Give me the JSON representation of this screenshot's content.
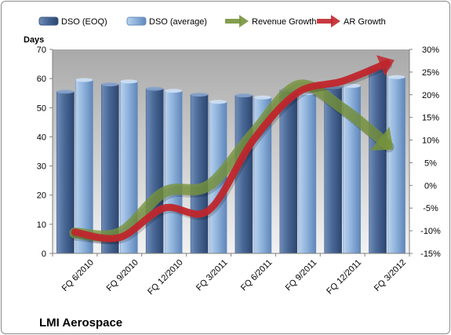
{
  "chart_data": {
    "type": "bar",
    "title": "LMI Aerospace",
    "ylabel": "Days",
    "categories": [
      "FQ 6/2010",
      "FQ 9/2010",
      "FQ 12/2010",
      "FQ 3/2011",
      "FQ 6/2011",
      "FQ 9/2011",
      "FQ 12/2011",
      "FQ 3/2012"
    ],
    "ylim": [
      0,
      70
    ],
    "y_ticks": [
      0,
      10,
      20,
      30,
      40,
      50,
      60,
      70
    ],
    "y2lim": [
      -15,
      30
    ],
    "y2_ticks": [
      "-15%",
      "-10%",
      "-5%",
      "0%",
      "5%",
      "10%",
      "15%",
      "20%",
      "25%",
      "30%"
    ],
    "grid": false,
    "legend_position": "top",
    "series": [
      {
        "name": "DSO (EOQ)",
        "axis": "left",
        "kind": "bar",
        "color": "#4a6896",
        "values": [
          55.5,
          58,
          56.5,
          54.5,
          54.2,
          56,
          57,
          64
        ]
      },
      {
        "name": "DSO (average)",
        "axis": "left",
        "kind": "bar",
        "color": "#8fb3dc",
        "values": [
          59.5,
          59,
          55.8,
          52,
          53.5,
          55,
          57.5,
          60.5
        ]
      },
      {
        "name": "Revenue Growth",
        "axis": "right",
        "kind": "line-arrow",
        "color": "#77933c",
        "values": [
          -10.5,
          -10.5,
          -1.5,
          0,
          11.5,
          22,
          17,
          9
        ]
      },
      {
        "name": "AR Growth",
        "axis": "right",
        "kind": "line-arrow",
        "color": "#c0262c",
        "values": [
          -10.3,
          -11.5,
          -5,
          -5.5,
          10,
          20.5,
          23,
          27
        ]
      }
    ]
  }
}
